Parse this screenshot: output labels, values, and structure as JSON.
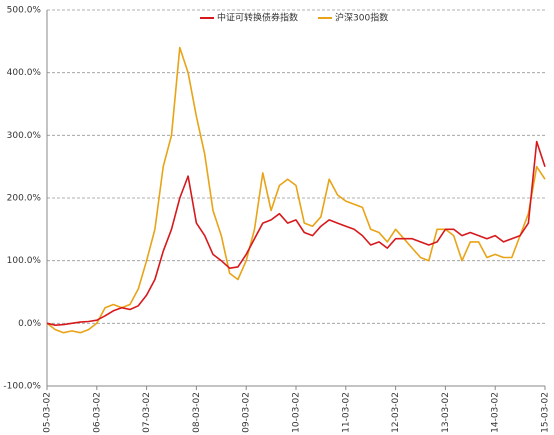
{
  "chart_data": {
    "type": "line",
    "categories": [
      "05-03-02",
      null,
      null,
      null,
      null,
      null,
      "06-03-02",
      null,
      null,
      null,
      null,
      null,
      "07-03-02",
      null,
      null,
      null,
      null,
      null,
      "08-03-02",
      null,
      null,
      null,
      null,
      null,
      "09-03-02",
      null,
      null,
      null,
      null,
      null,
      "10-03-02",
      null,
      null,
      null,
      null,
      null,
      "11-03-02",
      null,
      null,
      null,
      null,
      null,
      "12-03-02",
      null,
      null,
      null,
      null,
      null,
      "13-03-02",
      null,
      null,
      null,
      null,
      null,
      "14-03-02",
      null,
      null,
      null,
      null,
      null,
      "15-03-02"
    ],
    "series": [
      {
        "name": "中证可转换债券指数",
        "color": "#d7191c",
        "values": [
          0,
          -3,
          -2,
          0,
          2,
          3,
          5,
          12,
          20,
          25,
          22,
          28,
          45,
          70,
          115,
          150,
          200,
          235,
          160,
          140,
          110,
          100,
          88,
          90,
          110,
          135,
          160,
          165,
          175,
          160,
          165,
          145,
          140,
          155,
          165,
          160,
          155,
          150,
          140,
          125,
          130,
          120,
          135,
          135,
          135,
          130,
          125,
          130,
          150,
          150,
          140,
          145,
          140,
          135,
          140,
          130,
          135,
          140,
          160,
          290,
          250
        ]
      },
      {
        "name": "沪深300指数",
        "color": "#e8a317",
        "values": [
          0,
          -10,
          -15,
          -12,
          -15,
          -10,
          0,
          25,
          30,
          25,
          30,
          55,
          100,
          150,
          250,
          300,
          440,
          400,
          330,
          270,
          180,
          140,
          80,
          70,
          100,
          150,
          240,
          180,
          220,
          230,
          220,
          160,
          155,
          170,
          230,
          205,
          195,
          190,
          185,
          150,
          145,
          130,
          150,
          135,
          120,
          105,
          100,
          150,
          150,
          140,
          100,
          130,
          130,
          105,
          110,
          105,
          105,
          140,
          175,
          250,
          230
        ]
      }
    ],
    "ylim": [
      -100,
      500
    ],
    "yticks": [
      {
        "value": -100,
        "label": "-100.0%"
      },
      {
        "value": 0,
        "label": "0.0%"
      },
      {
        "value": 100,
        "label": "100.0%"
      },
      {
        "value": 200,
        "label": "200.0%"
      },
      {
        "value": 300,
        "label": "300.0%"
      },
      {
        "value": 400,
        "label": "400.0%"
      },
      {
        "value": 500,
        "label": "500.0%"
      }
    ],
    "grid": true,
    "legend": "top"
  }
}
